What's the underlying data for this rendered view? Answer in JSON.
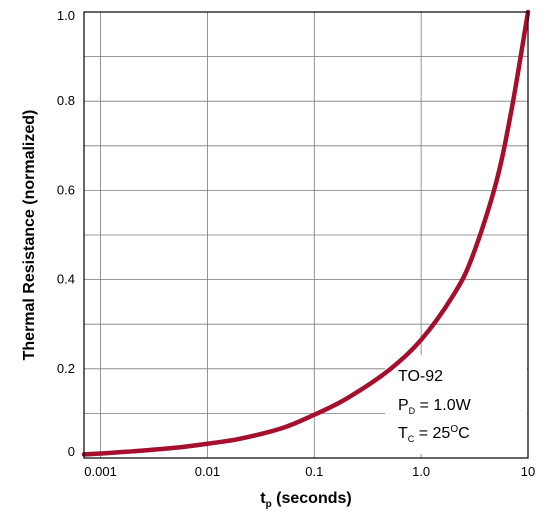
{
  "chart_data": {
    "type": "line",
    "title": "",
    "xlabel": {
      "main": "t",
      "sub": "p",
      "rest": " (seconds)"
    },
    "ylabel": "Thermal Resistance (normalized)",
    "x_scale": "log",
    "xlim": [
      0.0007,
      10
    ],
    "ylim": [
      0,
      1.0
    ],
    "grid": true,
    "x_ticks": [
      {
        "value": 0.001,
        "label": "0.001"
      },
      {
        "value": 0.01,
        "label": "0.01"
      },
      {
        "value": 0.1,
        "label": "0.1"
      },
      {
        "value": 1.0,
        "label": "1.0"
      },
      {
        "value": 10,
        "label": "10"
      }
    ],
    "y_ticks": [
      {
        "value": 0,
        "label": "0"
      },
      {
        "value": 0.2,
        "label": "0.2"
      },
      {
        "value": 0.4,
        "label": "0.4"
      },
      {
        "value": 0.6,
        "label": "0.6"
      },
      {
        "value": 0.8,
        "label": "0.8"
      },
      {
        "value": 1.0,
        "label": "1.0"
      }
    ],
    "y_minor_ticks": [
      0.1,
      0.3,
      0.5,
      0.7,
      0.9
    ],
    "series": [
      {
        "color": "#a50f2d",
        "x": [
          0.0007,
          0.001,
          0.002,
          0.005,
          0.01,
          0.02,
          0.05,
          0.1,
          0.2,
          0.5,
          1.0,
          2.0,
          3.0,
          5.0,
          7.0,
          10
        ],
        "y": [
          0.008,
          0.01,
          0.015,
          0.023,
          0.032,
          0.043,
          0.067,
          0.097,
          0.133,
          0.197,
          0.265,
          0.365,
          0.45,
          0.615,
          0.78,
          1.0
        ]
      }
    ],
    "annotation": {
      "line1": "TO-92",
      "line2_main": "P",
      "line2_sub": "D",
      "line2_rest": " = 1.0W",
      "line3_main": "T",
      "line3_sub": "C",
      "line3_rest": " = 25",
      "line3_sup": "O",
      "line3_end": "C"
    }
  }
}
